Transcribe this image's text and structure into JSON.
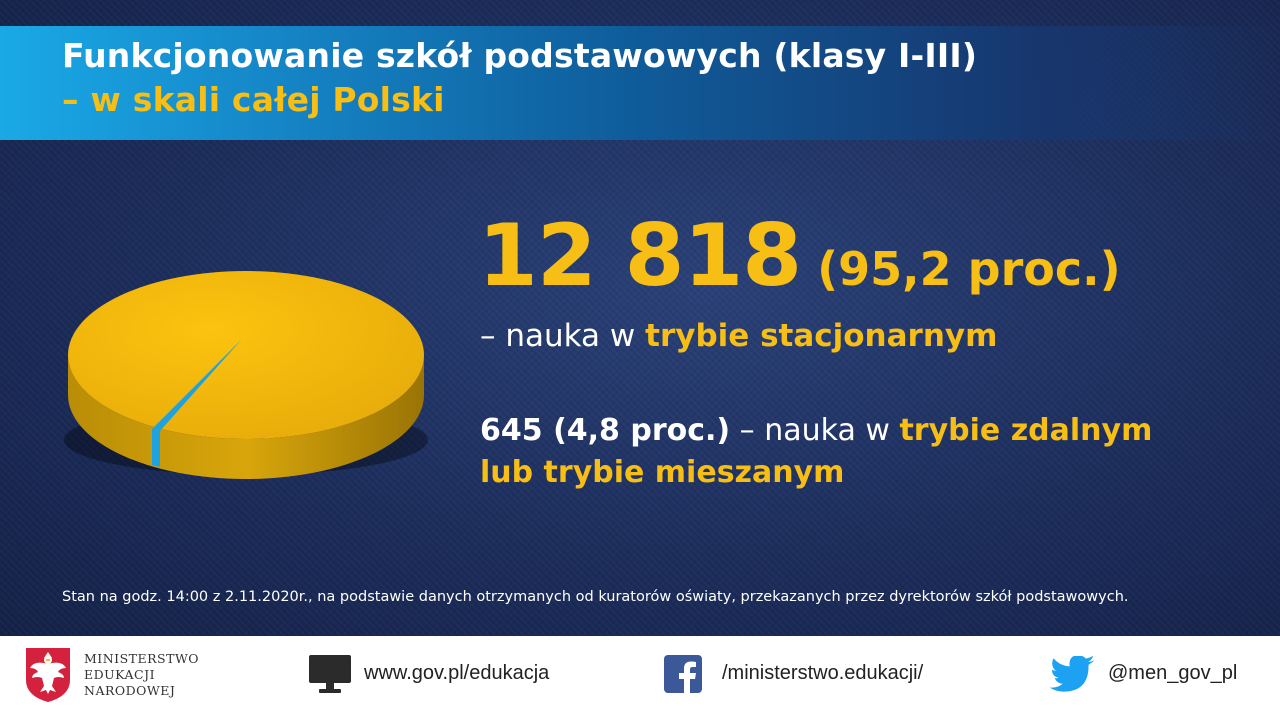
{
  "header": {
    "title_line1": "Funkcjonowanie szkół podstawowych (klasy I-III)",
    "title_line2": "– w skali całej Polski"
  },
  "stats": {
    "stationary_count": "12 818",
    "stationary_pct": "(95,2 proc.)",
    "stationary_prefix": "– nauka w ",
    "stationary_label": "trybie stacjonarnym",
    "remote_value": "645 (4,8 proc.)",
    "remote_middle": " – nauka w ",
    "remote_label_part1": "trybie zdalnym",
    "remote_label_part2": "lub trybie mieszanym"
  },
  "chart_data": {
    "type": "pie",
    "slices": [
      {
        "label": "trybie stacjonarnym",
        "value": 12818,
        "percent": 95.2,
        "color": "#f7be16"
      },
      {
        "label": "trybie zdalnym lub trybie mieszanym",
        "value": 645,
        "percent": 4.8,
        "color": "#1fa3e0"
      }
    ]
  },
  "note": "Stan na godz. 14:00 z 2.11.2020r., na podstawie danych otrzymanych od kuratorów oświaty,  przekazanych przez dyrektorów szkół podstawowych.",
  "footer": {
    "ministry_line1": "MINISTERSTWO",
    "ministry_line2": "EDUKACJI",
    "ministry_line3": "NARODOWEJ",
    "website": "www.gov.pl/edukacja",
    "facebook": "/ministerstwo.edukacji/",
    "twitter": "@men_gov_pl",
    "icons": [
      "eagle-emblem-icon",
      "monitor-icon",
      "facebook-icon",
      "twitter-icon"
    ]
  }
}
